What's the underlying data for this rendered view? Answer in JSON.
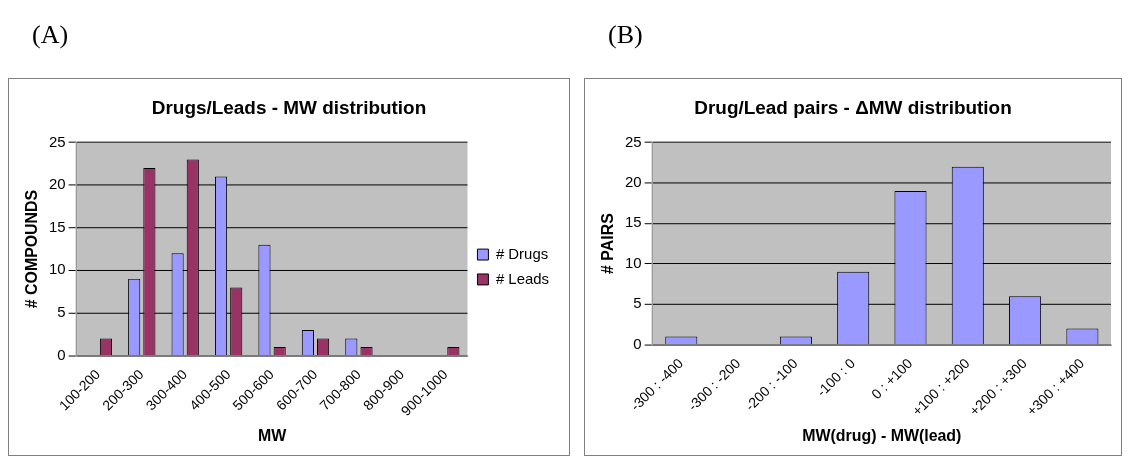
{
  "chart_data": [
    {
      "type": "bar",
      "title": "Drugs/Leads - MW distribution",
      "xlabel": "MW",
      "ylabel": "# COMPOUNDS",
      "annotations": [
        "(A)"
      ],
      "categories": [
        "100-200",
        "200-300",
        "300-400",
        "400-500",
        "500-600",
        "600-700",
        "700-800",
        "800-900",
        "900-1000"
      ],
      "series": [
        {
          "name": "# Drugs",
          "color": "#9999ff",
          "values": [
            0,
            9,
            12,
            21,
            13,
            3,
            2,
            0,
            0
          ]
        },
        {
          "name": "# Leads",
          "color": "#993366",
          "values": [
            2,
            22,
            23,
            8,
            1,
            2,
            1,
            0,
            1
          ]
        }
      ],
      "ylim": [
        0,
        25
      ],
      "yticks": [
        0,
        5,
        10,
        15,
        20,
        25
      ],
      "grid": "y",
      "legend": "right"
    },
    {
      "type": "bar",
      "title": "Drug/Lead pairs - ΔMW distribution",
      "xlabel": "MW(drug) - MW(lead)",
      "ylabel": "# PAIRS",
      "annotations": [
        "(B)"
      ],
      "categories": [
        "-300 : -400",
        "-300 : -200",
        "-200 : -100",
        "-100 : 0",
        "0 : +100",
        "+100 : +200",
        "+200 : +300",
        "+300 : +400"
      ],
      "series": [
        {
          "color": "#9999ff",
          "values": [
            1,
            0,
            1,
            9,
            19,
            22,
            6,
            2
          ]
        }
      ],
      "ylim": [
        0,
        25
      ],
      "yticks": [
        0,
        5,
        10,
        15,
        20,
        25
      ],
      "grid": "y"
    }
  ]
}
